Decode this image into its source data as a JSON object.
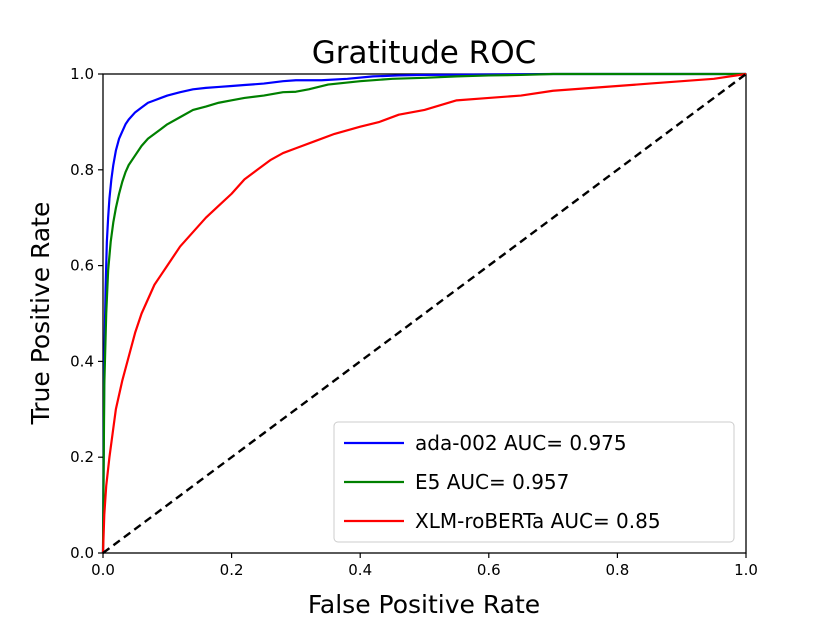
{
  "chart_data": {
    "type": "line",
    "title": "Gratitude ROC",
    "xlabel": "False Positive Rate",
    "ylabel": "True Positive Rate",
    "xlim": [
      0.0,
      1.0
    ],
    "ylim": [
      0.0,
      1.0
    ],
    "x_ticks": [
      "0.0",
      "0.2",
      "0.4",
      "0.6",
      "0.8",
      "1.0"
    ],
    "y_ticks": [
      "0.0",
      "0.2",
      "0.4",
      "0.6",
      "0.8",
      "1.0"
    ],
    "grid": false,
    "legend_position": "bottom-right",
    "series": [
      {
        "name": "ada-002 AUC= 0.975",
        "color": "#0000ff",
        "x": [
          0.0,
          0.002,
          0.004,
          0.006,
          0.008,
          0.01,
          0.013,
          0.016,
          0.02,
          0.025,
          0.03,
          0.035,
          0.04,
          0.05,
          0.06,
          0.07,
          0.08,
          0.09,
          0.1,
          0.12,
          0.14,
          0.16,
          0.18,
          0.2,
          0.22,
          0.25,
          0.28,
          0.3,
          0.34,
          0.38,
          0.42,
          0.46,
          0.5,
          0.6,
          0.7,
          0.8,
          0.9,
          1.0
        ],
        "y": [
          0.0,
          0.4,
          0.55,
          0.65,
          0.7,
          0.74,
          0.78,
          0.81,
          0.84,
          0.865,
          0.88,
          0.895,
          0.905,
          0.92,
          0.93,
          0.94,
          0.945,
          0.95,
          0.955,
          0.962,
          0.968,
          0.971,
          0.973,
          0.975,
          0.977,
          0.98,
          0.985,
          0.987,
          0.987,
          0.99,
          0.995,
          0.997,
          0.998,
          0.999,
          1.0,
          1.0,
          1.0,
          1.0
        ]
      },
      {
        "name": "E5 AUC= 0.957",
        "color": "#008000",
        "x": [
          0.0,
          0.002,
          0.005,
          0.008,
          0.012,
          0.016,
          0.02,
          0.025,
          0.03,
          0.035,
          0.04,
          0.05,
          0.06,
          0.07,
          0.08,
          0.09,
          0.1,
          0.12,
          0.14,
          0.16,
          0.18,
          0.2,
          0.22,
          0.25,
          0.28,
          0.3,
          0.32,
          0.35,
          0.4,
          0.45,
          0.5,
          0.55,
          0.6,
          0.65,
          0.7,
          0.8,
          0.9,
          1.0
        ],
        "y": [
          0.0,
          0.35,
          0.5,
          0.59,
          0.65,
          0.69,
          0.72,
          0.75,
          0.775,
          0.795,
          0.81,
          0.83,
          0.85,
          0.865,
          0.875,
          0.885,
          0.895,
          0.91,
          0.925,
          0.932,
          0.94,
          0.945,
          0.95,
          0.955,
          0.962,
          0.963,
          0.968,
          0.978,
          0.985,
          0.99,
          0.992,
          0.995,
          0.997,
          0.998,
          1.0,
          1.0,
          1.0,
          1.0
        ]
      },
      {
        "name": "XLM-roBERTa AUC= 0.85",
        "color": "#ff0000",
        "x": [
          0.0,
          0.002,
          0.005,
          0.01,
          0.015,
          0.02,
          0.03,
          0.04,
          0.05,
          0.06,
          0.07,
          0.08,
          0.09,
          0.1,
          0.12,
          0.14,
          0.16,
          0.18,
          0.2,
          0.22,
          0.24,
          0.26,
          0.28,
          0.3,
          0.33,
          0.36,
          0.4,
          0.43,
          0.46,
          0.5,
          0.55,
          0.6,
          0.65,
          0.7,
          0.75,
          0.8,
          0.85,
          0.9,
          0.95,
          1.0
        ],
        "y": [
          0.0,
          0.08,
          0.14,
          0.2,
          0.25,
          0.3,
          0.36,
          0.41,
          0.46,
          0.5,
          0.53,
          0.56,
          0.58,
          0.6,
          0.64,
          0.67,
          0.7,
          0.725,
          0.75,
          0.78,
          0.8,
          0.82,
          0.835,
          0.845,
          0.86,
          0.875,
          0.89,
          0.9,
          0.915,
          0.925,
          0.945,
          0.95,
          0.955,
          0.965,
          0.97,
          0.975,
          0.98,
          0.985,
          0.99,
          1.0
        ]
      },
      {
        "name": "",
        "color": "#000000",
        "dashed": true,
        "x": [
          0.0,
          1.0
        ],
        "y": [
          0.0,
          1.0
        ]
      }
    ]
  }
}
